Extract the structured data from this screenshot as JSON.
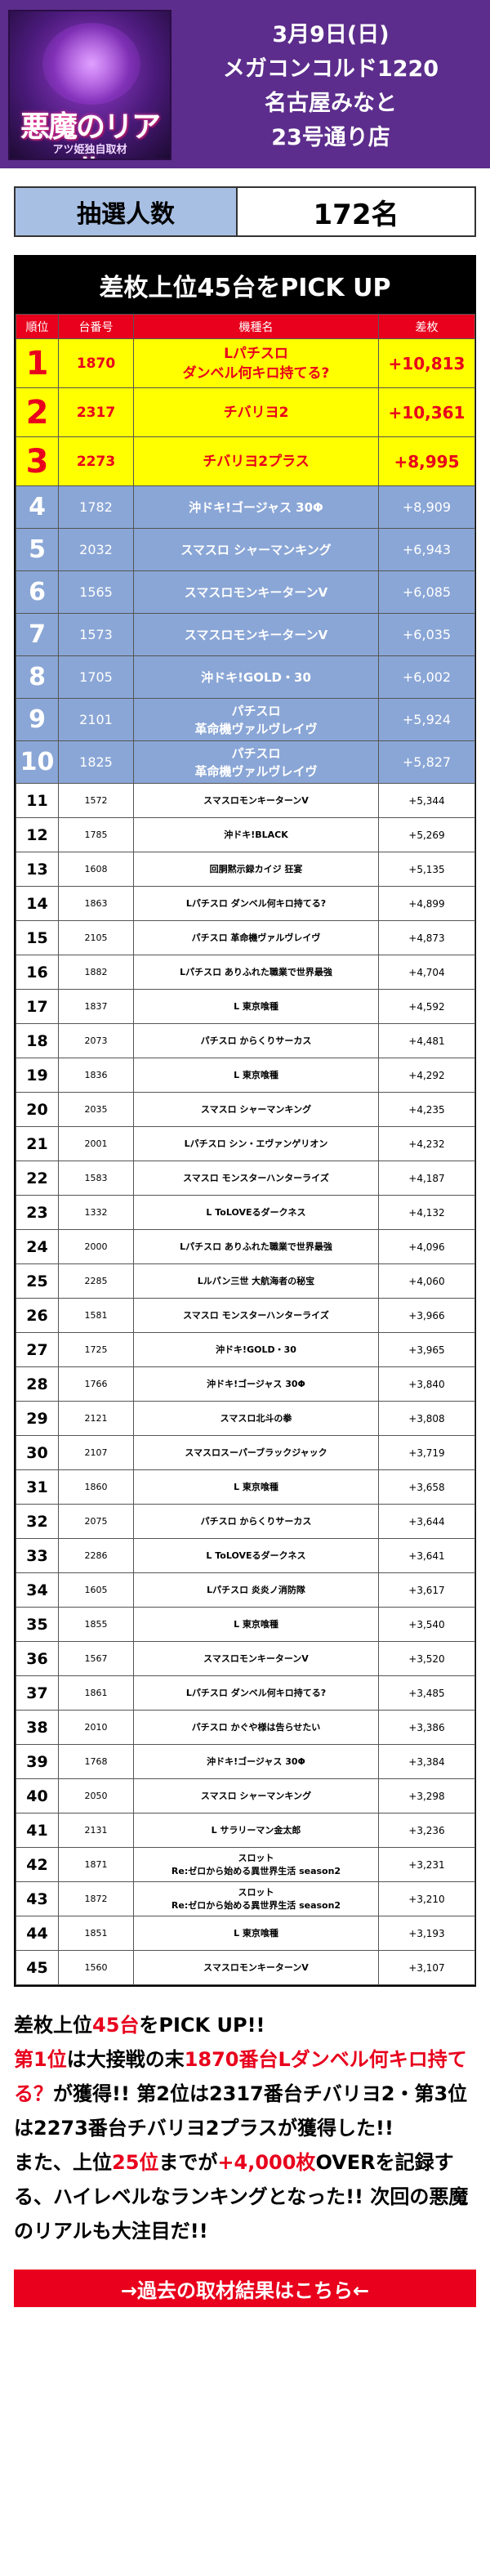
{
  "header": {
    "logo_text": "悪魔のリアル",
    "logo_sub": "アツ姫独自取材",
    "date": "3月9日(日)",
    "store_line1": "メガコンコルド1220",
    "store_line2": "名古屋みなと",
    "store_line3": "23号通り店"
  },
  "lottery": {
    "label": "抽選人数",
    "value": "172名"
  },
  "ranking": {
    "title": "差枚上位45台をPICK UP",
    "columns": [
      "順位",
      "台番号",
      "機種名",
      "差枚"
    ],
    "rows": [
      {
        "rank": "1",
        "number": "1870",
        "model": "Lパチスロ\nダンベル何キロ持てる?",
        "diff": "+10,813"
      },
      {
        "rank": "2",
        "number": "2317",
        "model": "チバリヨ2",
        "diff": "+10,361"
      },
      {
        "rank": "3",
        "number": "2273",
        "model": "チバリヨ2プラス",
        "diff": "+8,995"
      },
      {
        "rank": "4",
        "number": "1782",
        "model": "沖ドキ!ゴージャス 30Φ",
        "diff": "+8,909"
      },
      {
        "rank": "5",
        "number": "2032",
        "model": "スマスロ シャーマンキング",
        "diff": "+6,943"
      },
      {
        "rank": "6",
        "number": "1565",
        "model": "スマスロモンキーターンV",
        "diff": "+6,085"
      },
      {
        "rank": "7",
        "number": "1573",
        "model": "スマスロモンキーターンV",
        "diff": "+6,035"
      },
      {
        "rank": "8",
        "number": "1705",
        "model": "沖ドキ!GOLD・30",
        "diff": "+6,002"
      },
      {
        "rank": "9",
        "number": "2101",
        "model": "パチスロ\n革命機ヴァルヴレイヴ",
        "diff": "+5,924"
      },
      {
        "rank": "10",
        "number": "1825",
        "model": "パチスロ\n革命機ヴァルヴレイヴ",
        "diff": "+5,827"
      },
      {
        "rank": "11",
        "number": "1572",
        "model": "スマスロモンキーターンV",
        "diff": "+5,344"
      },
      {
        "rank": "12",
        "number": "1785",
        "model": "沖ドキ!BLACK",
        "diff": "+5,269"
      },
      {
        "rank": "13",
        "number": "1608",
        "model": "回胴黙示録カイジ 狂宴",
        "diff": "+5,135"
      },
      {
        "rank": "14",
        "number": "1863",
        "model": "Lパチスロ ダンベル何キロ持てる?",
        "diff": "+4,899"
      },
      {
        "rank": "15",
        "number": "2105",
        "model": "パチスロ 革命機ヴァルヴレイヴ",
        "diff": "+4,873"
      },
      {
        "rank": "16",
        "number": "1882",
        "model": "Lパチスロ ありふれた職業で世界最強",
        "diff": "+4,704"
      },
      {
        "rank": "17",
        "number": "1837",
        "model": "L 東京喰種",
        "diff": "+4,592"
      },
      {
        "rank": "18",
        "number": "2073",
        "model": "パチスロ からくりサーカス",
        "diff": "+4,481"
      },
      {
        "rank": "19",
        "number": "1836",
        "model": "L 東京喰種",
        "diff": "+4,292"
      },
      {
        "rank": "20",
        "number": "2035",
        "model": "スマスロ シャーマンキング",
        "diff": "+4,235"
      },
      {
        "rank": "21",
        "number": "2001",
        "model": "Lパチスロ シン・エヴァンゲリオン",
        "diff": "+4,232"
      },
      {
        "rank": "22",
        "number": "1583",
        "model": "スマスロ モンスターハンターライズ",
        "diff": "+4,187"
      },
      {
        "rank": "23",
        "number": "1332",
        "model": "L ToLOVEるダークネス",
        "diff": "+4,132"
      },
      {
        "rank": "24",
        "number": "2000",
        "model": "Lパチスロ ありふれた職業で世界最強",
        "diff": "+4,096"
      },
      {
        "rank": "25",
        "number": "2285",
        "model": "Lルパン三世 大航海者の秘宝",
        "diff": "+4,060"
      },
      {
        "rank": "26",
        "number": "1581",
        "model": "スマスロ モンスターハンターライズ",
        "diff": "+3,966"
      },
      {
        "rank": "27",
        "number": "1725",
        "model": "沖ドキ!GOLD・30",
        "diff": "+3,965"
      },
      {
        "rank": "28",
        "number": "1766",
        "model": "沖ドキ!ゴージャス 30Φ",
        "diff": "+3,840"
      },
      {
        "rank": "29",
        "number": "2121",
        "model": "スマスロ北斗の拳",
        "diff": "+3,808"
      },
      {
        "rank": "30",
        "number": "2107",
        "model": "スマスロスーパーブラックジャック",
        "diff": "+3,719"
      },
      {
        "rank": "31",
        "number": "1860",
        "model": "L 東京喰種",
        "diff": "+3,658"
      },
      {
        "rank": "32",
        "number": "2075",
        "model": "パチスロ からくりサーカス",
        "diff": "+3,644"
      },
      {
        "rank": "33",
        "number": "2286",
        "model": "L ToLOVEるダークネス",
        "diff": "+3,641"
      },
      {
        "rank": "34",
        "number": "1605",
        "model": "Lパチスロ 炎炎ノ消防隊",
        "diff": "+3,617"
      },
      {
        "rank": "35",
        "number": "1855",
        "model": "L 東京喰種",
        "diff": "+3,540"
      },
      {
        "rank": "36",
        "number": "1567",
        "model": "スマスロモンキーターンV",
        "diff": "+3,520"
      },
      {
        "rank": "37",
        "number": "1861",
        "model": "Lパチスロ ダンベル何キロ持てる?",
        "diff": "+3,485"
      },
      {
        "rank": "38",
        "number": "2010",
        "model": "パチスロ かぐや様は告らせたい",
        "diff": "+3,386"
      },
      {
        "rank": "39",
        "number": "1768",
        "model": "沖ドキ!ゴージャス 30Φ",
        "diff": "+3,384"
      },
      {
        "rank": "40",
        "number": "2050",
        "model": "スマスロ シャーマンキング",
        "diff": "+3,298"
      },
      {
        "rank": "41",
        "number": "2131",
        "model": "L サラリーマン金太郎",
        "diff": "+3,236"
      },
      {
        "rank": "42",
        "number": "1871",
        "model": "スロット\nRe:ゼロから始める異世界生活 season2",
        "diff": "+3,231"
      },
      {
        "rank": "43",
        "number": "1872",
        "model": "スロット\nRe:ゼロから始める異世界生活 season2",
        "diff": "+3,210"
      },
      {
        "rank": "44",
        "number": "1851",
        "model": "L 東京喰種",
        "diff": "+3,193"
      },
      {
        "rank": "45",
        "number": "1560",
        "model": "スマスロモンキーターンV",
        "diff": "+3,107"
      }
    ]
  },
  "summary": {
    "p1": "差枚上位",
    "p2": "45台",
    "p3": "をPICK UP!!",
    "p4": "第1位",
    "p5": "は大接戦の末",
    "p6": "1870番台Lダンベル何キロ持てる？",
    "p7": "が獲得!! 第2位は2317番台チバリヨ2・第3位は2273番台チバリヨ2プラスが獲得した!!",
    "p8": "また、上位",
    "p9": "25位",
    "p10": "までが",
    "p11": "+4,000枚",
    "p12": "OVERを記録する、ハイレベルなランキングとなった!! 次回の悪魔のリアルも大注目だ!!"
  },
  "past_link": "→過去の取材結果はこちら←",
  "colors": {
    "header_bg": "#5c2d8c",
    "accent_red": "#e8001c",
    "top3_yellow": "#ffff00",
    "mid_blue": "#8aa6d6",
    "lottery_label_bg": "#a7bfe2"
  }
}
